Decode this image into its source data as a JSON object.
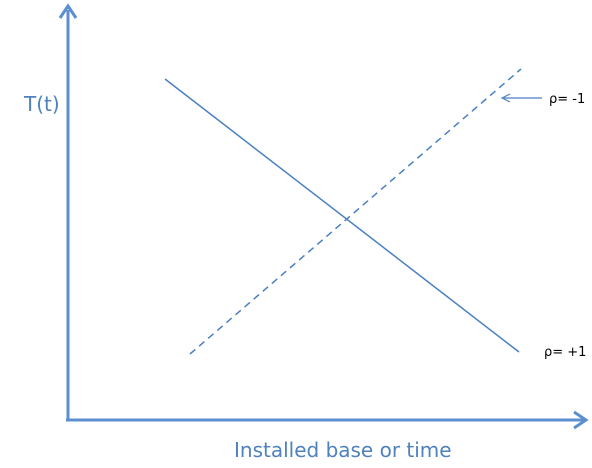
{
  "axes": {
    "y_label": "T(t)",
    "x_label": "Installed base or time"
  },
  "lines": [
    {
      "label": "ρ= -1",
      "style": "dashed",
      "trend": "increasing"
    },
    {
      "label": "ρ= +1",
      "style": "solid",
      "trend": "decreasing"
    }
  ],
  "colors": {
    "axis": "#5b8fd0",
    "line": "#4a7fc2",
    "axis_label": "#4f81bd",
    "line_label": "#000000"
  }
}
